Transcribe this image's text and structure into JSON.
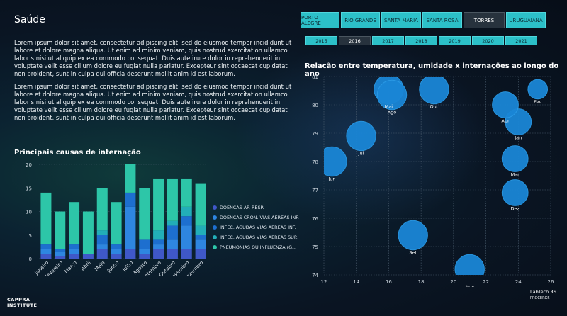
{
  "page": {
    "title": "Saúde",
    "paragraphs": [
      "Lorem ipsum dolor sit amet, consectetur adipiscing elit, sed do eiusmod tempor incididunt ut labore et dolore magna aliqua. Ut enim ad minim veniam, quis nostrud exercitation ullamco laboris nisi ut aliquip ex ea commodo consequat. Duis aute irure dolor in reprehenderit in voluptate velit esse cillum dolore eu fugiat nulla pariatur. Excepteur sint occaecat cupidatat non proident, sunt in culpa qui officia deserunt mollit anim id est laborum.",
      "Lorem ipsum dolor sit amet, consectetur adipiscing elit, sed do eiusmod tempor incididunt ut labore et dolore magna aliqua. Ut enim ad minim veniam, quis nostrud exercitation ullamco laboris nisi ut aliquip ex ea commodo consequat. Duis aute irure dolor in reprehenderit in voluptate velit esse cillum dolore eu fugiat nulla pariatur. Excepteur sint occaecat cupidatat non proident, sunt in culpa qui officia deserunt mollit anim id est laborum."
    ]
  },
  "filters": {
    "cities": [
      "PORTO ALEGRE",
      "RIO GRANDE",
      "SANTA MARIA",
      "SANTA ROSA",
      "TORRES",
      "URUGUAIANA"
    ],
    "selected_city": "TORRES",
    "years": [
      "2015",
      "2016",
      "2017",
      "2018",
      "2019",
      "2020",
      "2021"
    ],
    "selected_year": "2016"
  },
  "logos": {
    "left_line1": "CAPPRA",
    "left_line2": "INSTITUTE",
    "right_line1": "LabTech RS",
    "right_line2": "PROCERGS"
  },
  "colors": {
    "accent": "#2cc0c8",
    "selected_button": "#27323d",
    "bubble": "#1a86d6"
  },
  "chart_data": [
    {
      "type": "bar",
      "stacked": true,
      "title": "Principais causas de internação",
      "categories": [
        "Janeiro",
        "Fevereiro",
        "Março",
        "Abril",
        "Maio",
        "Junho",
        "Julho",
        "Agosto",
        "Setembro",
        "Outubro",
        "Novembro",
        "Dezembro"
      ],
      "series": [
        {
          "name": "DOENCAS AP. RESP.",
          "color": "#3f58c8",
          "values": [
            1,
            0.5,
            1,
            1,
            2,
            1,
            2,
            1,
            2,
            2,
            2,
            2
          ]
        },
        {
          "name": "DOENCAS CRON. VIAS AEREAS INF.",
          "color": "#2e86e0",
          "values": [
            1,
            1,
            1,
            0,
            1,
            1,
            9,
            1,
            1,
            2,
            5,
            2
          ]
        },
        {
          "name": "INFEC. AGUDAS VIAS AEREAS INF.",
          "color": "#1d6fcf",
          "values": [
            1,
            0.5,
            1,
            0,
            2,
            1,
            3,
            2,
            1,
            3,
            2,
            1
          ]
        },
        {
          "name": "INFEC. AGUDAS VIAS AEREAS SUP.",
          "color": "#22aeb8",
          "values": [
            0,
            0,
            0,
            0,
            1,
            0,
            0,
            0,
            2,
            1,
            2,
            2
          ]
        },
        {
          "name": "PNEUMONIAS OU INFLUENZA (G...",
          "color": "#2dc6a8",
          "values": [
            11,
            8,
            9,
            9,
            9,
            9,
            6,
            11,
            11,
            9,
            6,
            9
          ]
        }
      ],
      "ylim": [
        0,
        20
      ],
      "yticks": [
        0,
        5,
        10,
        15,
        20
      ],
      "grid": true,
      "legend": "right"
    },
    {
      "type": "scatter",
      "title": "Relação entre temperatura, umidade x internações ao longo do ano",
      "xlim": [
        12,
        26
      ],
      "ylim": [
        74,
        81
      ],
      "xticks": [
        12,
        14,
        16,
        18,
        20,
        22,
        24,
        26
      ],
      "yticks": [
        74,
        75,
        76,
        77,
        78,
        79,
        80,
        81
      ],
      "grid": true,
      "points": [
        {
          "label": "Jan",
          "x": 24.0,
          "y": 79.4,
          "size": 8
        },
        {
          "label": "Fev",
          "x": 25.2,
          "y": 80.55,
          "size": 6
        },
        {
          "label": "Mar",
          "x": 23.8,
          "y": 78.1,
          "size": 8
        },
        {
          "label": "Abr",
          "x": 23.2,
          "y": 80.0,
          "size": 8
        },
        {
          "label": "Mai",
          "x": 16.0,
          "y": 80.55,
          "size": 9
        },
        {
          "label": "Jun",
          "x": 12.5,
          "y": 78.0,
          "size": 9
        },
        {
          "label": "Jul",
          "x": 14.3,
          "y": 78.9,
          "size": 9
        },
        {
          "label": "Ago",
          "x": 16.2,
          "y": 80.35,
          "size": 9
        },
        {
          "label": "Set",
          "x": 17.5,
          "y": 75.4,
          "size": 9
        },
        {
          "label": "Out",
          "x": 18.8,
          "y": 80.55,
          "size": 9
        },
        {
          "label": "Nov",
          "x": 21.0,
          "y": 74.2,
          "size": 9
        },
        {
          "label": "Dez",
          "x": 23.8,
          "y": 76.9,
          "size": 8
        }
      ]
    }
  ]
}
